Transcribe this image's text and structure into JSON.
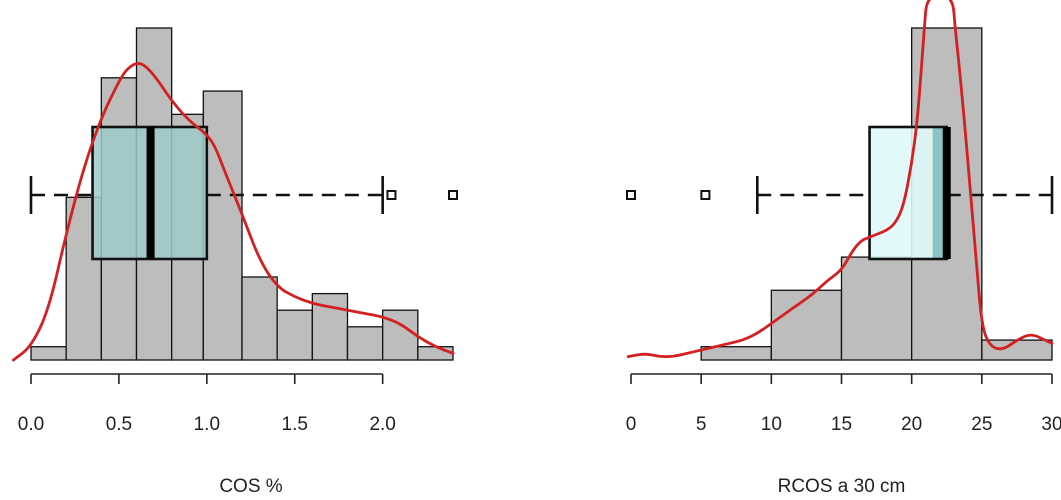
{
  "chart_data": [
    {
      "type": "histogram",
      "xlabel": "COS %",
      "xlim": [
        0.0,
        2.4
      ],
      "tick_values": [
        0.0,
        0.5,
        1.0,
        1.5,
        2.0
      ],
      "tick_labels": [
        "0.0",
        "0.5",
        "1.0",
        "1.5",
        "2.0"
      ],
      "bins": [
        {
          "from": 0.0,
          "to": 0.2,
          "height": 0.04
        },
        {
          "from": 0.2,
          "to": 0.4,
          "height": 0.49
        },
        {
          "from": 0.4,
          "to": 0.6,
          "height": 0.85
        },
        {
          "from": 0.6,
          "to": 0.8,
          "height": 1.0
        },
        {
          "from": 0.8,
          "to": 0.98,
          "height": 0.74
        },
        {
          "from": 0.98,
          "to": 1.2,
          "height": 0.81
        },
        {
          "from": 1.2,
          "to": 1.4,
          "height": 0.25
        },
        {
          "from": 1.4,
          "to": 1.6,
          "height": 0.15
        },
        {
          "from": 1.6,
          "to": 1.8,
          "height": 0.2
        },
        {
          "from": 1.8,
          "to": 2.0,
          "height": 0.1
        },
        {
          "from": 2.0,
          "to": 2.2,
          "height": 0.15
        },
        {
          "from": 2.2,
          "to": 2.4,
          "height": 0.04
        }
      ],
      "density_curve": [
        [
          -0.1,
          0.0
        ],
        [
          0.0,
          0.04
        ],
        [
          0.1,
          0.15
        ],
        [
          0.2,
          0.38
        ],
        [
          0.3,
          0.58
        ],
        [
          0.4,
          0.73
        ],
        [
          0.5,
          0.84
        ],
        [
          0.55,
          0.88
        ],
        [
          0.62,
          0.9
        ],
        [
          0.7,
          0.86
        ],
        [
          0.8,
          0.78
        ],
        [
          0.9,
          0.72
        ],
        [
          1.0,
          0.68
        ],
        [
          1.05,
          0.64
        ],
        [
          1.1,
          0.57
        ],
        [
          1.2,
          0.44
        ],
        [
          1.3,
          0.3
        ],
        [
          1.4,
          0.22
        ],
        [
          1.5,
          0.19
        ],
        [
          1.6,
          0.17
        ],
        [
          1.7,
          0.16
        ],
        [
          1.8,
          0.15
        ],
        [
          1.9,
          0.14
        ],
        [
          2.0,
          0.13
        ],
        [
          2.1,
          0.11
        ],
        [
          2.2,
          0.07
        ],
        [
          2.3,
          0.04
        ],
        [
          2.4,
          0.02
        ]
      ],
      "boxplot": {
        "whisker_low": 0.0,
        "q1": 0.35,
        "median": 0.68,
        "q3": 1.0,
        "whisker_high": 2.0,
        "outliers": [
          2.05,
          2.4
        ],
        "fill": "#9ecbc9"
      },
      "bar_color": "#bdbdbd",
      "curve_color": "#d42020"
    },
    {
      "type": "histogram",
      "xlabel": "RCOS a 30 cm",
      "xlim": [
        0,
        30
      ],
      "tick_values": [
        0,
        5,
        10,
        15,
        20,
        25,
        30
      ],
      "tick_labels": [
        "0",
        "5",
        "10",
        "15",
        "20",
        "25",
        "30"
      ],
      "bins": [
        {
          "from": 0,
          "to": 5,
          "height": 0.0
        },
        {
          "from": 5,
          "to": 10,
          "height": 0.04
        },
        {
          "from": 10,
          "to": 15,
          "height": 0.21
        },
        {
          "from": 15,
          "to": 20,
          "height": 0.31
        },
        {
          "from": 20,
          "to": 25,
          "height": 1.0
        },
        {
          "from": 25,
          "to": 30,
          "height": 0.06
        }
      ],
      "density_curve": [
        [
          -0.2,
          0.01
        ],
        [
          1,
          0.02
        ],
        [
          2,
          0.01
        ],
        [
          3,
          0.01
        ],
        [
          4,
          0.02
        ],
        [
          5,
          0.03
        ],
        [
          6,
          0.04
        ],
        [
          7,
          0.05
        ],
        [
          8,
          0.06
        ],
        [
          9,
          0.08
        ],
        [
          10,
          0.11
        ],
        [
          11,
          0.14
        ],
        [
          12,
          0.17
        ],
        [
          13,
          0.2
        ],
        [
          14,
          0.24
        ],
        [
          15,
          0.27
        ],
        [
          15.8,
          0.33
        ],
        [
          16.4,
          0.36
        ],
        [
          17,
          0.37
        ],
        [
          17.6,
          0.38
        ],
        [
          18.2,
          0.39
        ],
        [
          18.8,
          0.41
        ],
        [
          19.4,
          0.46
        ],
        [
          20,
          0.59
        ],
        [
          20.4,
          0.72
        ],
        [
          20.7,
          0.88
        ],
        [
          20.9,
          1.0
        ],
        [
          21.1,
          1.1
        ],
        [
          22.9,
          1.1
        ],
        [
          23.1,
          1.0
        ],
        [
          23.4,
          0.88
        ],
        [
          23.8,
          0.7
        ],
        [
          24.2,
          0.5
        ],
        [
          24.6,
          0.3
        ],
        [
          25.0,
          0.1
        ],
        [
          25.6,
          0.04
        ],
        [
          26.5,
          0.03
        ],
        [
          27.5,
          0.06
        ],
        [
          28.5,
          0.08
        ],
        [
          29.5,
          0.06
        ],
        [
          30,
          0.05
        ]
      ],
      "boxplot": {
        "whisker_low": 9,
        "q1": 17,
        "median": 22.5,
        "q3": 22.5,
        "whisker_high": 30,
        "outliers": [
          0,
          5.3
        ],
        "fill_left": "#dff8f8",
        "fill_right": "#8cc3c4"
      },
      "bar_color": "#bdbdbd",
      "curve_color": "#d42020"
    }
  ]
}
